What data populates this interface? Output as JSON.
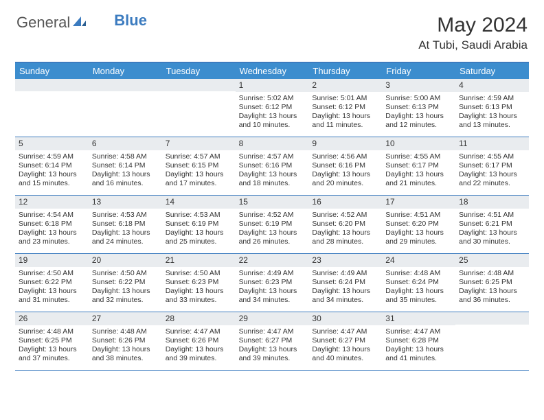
{
  "brand": {
    "part1": "General",
    "part2": "Blue"
  },
  "title": "May 2024",
  "location": "At Tubi, Saudi Arabia",
  "colors": {
    "header_bg": "#3c8dce",
    "border": "#3b7bbf",
    "daynum_bg": "#e9ecef",
    "text": "#333333"
  },
  "day_names": [
    "Sunday",
    "Monday",
    "Tuesday",
    "Wednesday",
    "Thursday",
    "Friday",
    "Saturday"
  ],
  "weeks": [
    [
      null,
      null,
      null,
      {
        "n": "1",
        "sr": "5:02 AM",
        "ss": "6:12 PM",
        "dl": "Daylight: 13 hours and 10 minutes."
      },
      {
        "n": "2",
        "sr": "5:01 AM",
        "ss": "6:12 PM",
        "dl": "Daylight: 13 hours and 11 minutes."
      },
      {
        "n": "3",
        "sr": "5:00 AM",
        "ss": "6:13 PM",
        "dl": "Daylight: 13 hours and 12 minutes."
      },
      {
        "n": "4",
        "sr": "4:59 AM",
        "ss": "6:13 PM",
        "dl": "Daylight: 13 hours and 13 minutes."
      }
    ],
    [
      {
        "n": "5",
        "sr": "4:59 AM",
        "ss": "6:14 PM",
        "dl": "Daylight: 13 hours and 15 minutes."
      },
      {
        "n": "6",
        "sr": "4:58 AM",
        "ss": "6:14 PM",
        "dl": "Daylight: 13 hours and 16 minutes."
      },
      {
        "n": "7",
        "sr": "4:57 AM",
        "ss": "6:15 PM",
        "dl": "Daylight: 13 hours and 17 minutes."
      },
      {
        "n": "8",
        "sr": "4:57 AM",
        "ss": "6:16 PM",
        "dl": "Daylight: 13 hours and 18 minutes."
      },
      {
        "n": "9",
        "sr": "4:56 AM",
        "ss": "6:16 PM",
        "dl": "Daylight: 13 hours and 20 minutes."
      },
      {
        "n": "10",
        "sr": "4:55 AM",
        "ss": "6:17 PM",
        "dl": "Daylight: 13 hours and 21 minutes."
      },
      {
        "n": "11",
        "sr": "4:55 AM",
        "ss": "6:17 PM",
        "dl": "Daylight: 13 hours and 22 minutes."
      }
    ],
    [
      {
        "n": "12",
        "sr": "4:54 AM",
        "ss": "6:18 PM",
        "dl": "Daylight: 13 hours and 23 minutes."
      },
      {
        "n": "13",
        "sr": "4:53 AM",
        "ss": "6:18 PM",
        "dl": "Daylight: 13 hours and 24 minutes."
      },
      {
        "n": "14",
        "sr": "4:53 AM",
        "ss": "6:19 PM",
        "dl": "Daylight: 13 hours and 25 minutes."
      },
      {
        "n": "15",
        "sr": "4:52 AM",
        "ss": "6:19 PM",
        "dl": "Daylight: 13 hours and 26 minutes."
      },
      {
        "n": "16",
        "sr": "4:52 AM",
        "ss": "6:20 PM",
        "dl": "Daylight: 13 hours and 28 minutes."
      },
      {
        "n": "17",
        "sr": "4:51 AM",
        "ss": "6:20 PM",
        "dl": "Daylight: 13 hours and 29 minutes."
      },
      {
        "n": "18",
        "sr": "4:51 AM",
        "ss": "6:21 PM",
        "dl": "Daylight: 13 hours and 30 minutes."
      }
    ],
    [
      {
        "n": "19",
        "sr": "4:50 AM",
        "ss": "6:22 PM",
        "dl": "Daylight: 13 hours and 31 minutes."
      },
      {
        "n": "20",
        "sr": "4:50 AM",
        "ss": "6:22 PM",
        "dl": "Daylight: 13 hours and 32 minutes."
      },
      {
        "n": "21",
        "sr": "4:50 AM",
        "ss": "6:23 PM",
        "dl": "Daylight: 13 hours and 33 minutes."
      },
      {
        "n": "22",
        "sr": "4:49 AM",
        "ss": "6:23 PM",
        "dl": "Daylight: 13 hours and 34 minutes."
      },
      {
        "n": "23",
        "sr": "4:49 AM",
        "ss": "6:24 PM",
        "dl": "Daylight: 13 hours and 34 minutes."
      },
      {
        "n": "24",
        "sr": "4:48 AM",
        "ss": "6:24 PM",
        "dl": "Daylight: 13 hours and 35 minutes."
      },
      {
        "n": "25",
        "sr": "4:48 AM",
        "ss": "6:25 PM",
        "dl": "Daylight: 13 hours and 36 minutes."
      }
    ],
    [
      {
        "n": "26",
        "sr": "4:48 AM",
        "ss": "6:25 PM",
        "dl": "Daylight: 13 hours and 37 minutes."
      },
      {
        "n": "27",
        "sr": "4:48 AM",
        "ss": "6:26 PM",
        "dl": "Daylight: 13 hours and 38 minutes."
      },
      {
        "n": "28",
        "sr": "4:47 AM",
        "ss": "6:26 PM",
        "dl": "Daylight: 13 hours and 39 minutes."
      },
      {
        "n": "29",
        "sr": "4:47 AM",
        "ss": "6:27 PM",
        "dl": "Daylight: 13 hours and 39 minutes."
      },
      {
        "n": "30",
        "sr": "4:47 AM",
        "ss": "6:27 PM",
        "dl": "Daylight: 13 hours and 40 minutes."
      },
      {
        "n": "31",
        "sr": "4:47 AM",
        "ss": "6:28 PM",
        "dl": "Daylight: 13 hours and 41 minutes."
      },
      null
    ]
  ]
}
